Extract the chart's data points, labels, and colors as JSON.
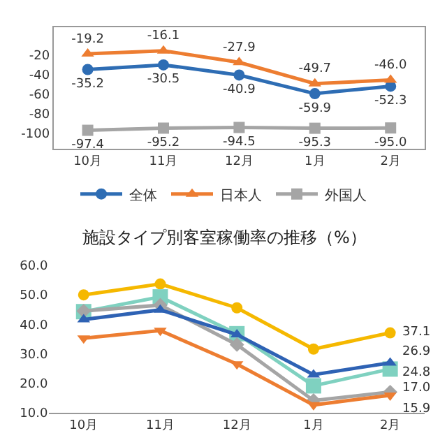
{
  "chart_data": [
    {
      "type": "line",
      "categories": [
        "10月",
        "11月",
        "12月",
        "1月",
        "2月"
      ],
      "ylim": [
        -116,
        8
      ],
      "yticks": [
        -100,
        -80,
        -60,
        -40,
        -20
      ],
      "legend": "bottom",
      "series": [
        {
          "name": "全体",
          "color": "#2e6db4",
          "marker": "circle",
          "values": [
            -35.2,
            -30.5,
            -40.9,
            -59.9,
            -52.3
          ],
          "value_labels": [
            "-35.2",
            "-30.5",
            "-40.9",
            "-59.9",
            "-52.3"
          ]
        },
        {
          "name": "日本人",
          "color": "#ed7d31",
          "marker": "triangle",
          "values": [
            -19.2,
            -16.1,
            -27.9,
            -49.7,
            -46.0
          ],
          "value_labels": [
            "-19.2",
            "-16.1",
            "-27.9",
            "-49.7",
            "-46.0"
          ]
        },
        {
          "name": "外国人",
          "color": "#a5a5a5",
          "marker": "square",
          "values": [
            -97.4,
            -95.2,
            -94.5,
            -95.3,
            -95.0
          ],
          "value_labels": [
            "-97.4",
            "-95.2",
            "-94.5",
            "-95.3",
            "-95.0"
          ]
        }
      ]
    },
    {
      "type": "line",
      "title": "施設タイプ別客室稼働率の推移（%）",
      "categories": [
        "10月",
        "11月",
        "12月",
        "1月",
        "2月"
      ],
      "ylim": [
        10,
        60
      ],
      "yticks": [
        {
          "value": 10,
          "label": "10.0"
        },
        {
          "value": 20,
          "label": "20.0"
        },
        {
          "value": 30,
          "label": "30.0"
        },
        {
          "value": 40,
          "label": "40.0"
        },
        {
          "value": 50,
          "label": "50.0"
        },
        {
          "value": 60,
          "label": "60.0"
        }
      ],
      "legend": false,
      "series": [
        {
          "color": "#f5b800",
          "marker": "circle",
          "values": [
            50.0,
            53.7,
            45.6,
            31.6,
            37.1
          ],
          "value_labels": [
            null,
            null,
            null,
            null,
            "37.1"
          ]
        },
        {
          "color": "#7fd1c0",
          "marker": "square",
          "values": [
            44.3,
            49.3,
            36.8,
            19.1,
            24.8
          ],
          "value_labels": [
            null,
            null,
            null,
            null,
            "24.8"
          ]
        },
        {
          "color": "#a5a5a5",
          "marker": "diamond",
          "values": [
            44.5,
            46.5,
            33.1,
            14.1,
            17.0
          ],
          "value_labels": [
            null,
            null,
            null,
            null,
            "17.0"
          ]
        },
        {
          "color": "#2e62b4",
          "marker": "triangle",
          "values": [
            41.6,
            44.9,
            36.5,
            22.9,
            26.9
          ],
          "value_labels": [
            null,
            null,
            null,
            null,
            "26.9"
          ]
        },
        {
          "color": "#ed7d31",
          "marker": "triangle-down",
          "values": [
            35.3,
            37.9,
            26.5,
            12.6,
            15.9
          ],
          "value_labels": [
            null,
            null,
            null,
            null,
            "15.9"
          ]
        }
      ]
    }
  ]
}
